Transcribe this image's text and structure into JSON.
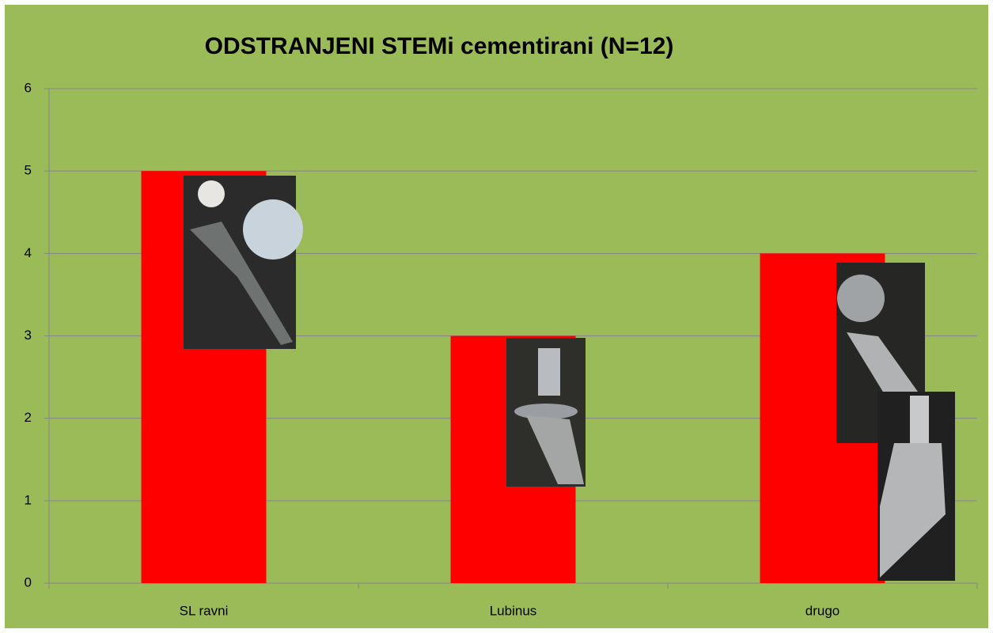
{
  "chart_data": {
    "type": "bar",
    "title": "ODSTRANJENI STEMi cementirani  (N=12)",
    "categories": [
      "SL ravni",
      "Lubinus",
      "drugo"
    ],
    "values": [
      5,
      3,
      4
    ],
    "color": "#ff0000",
    "ylim": [
      0,
      6
    ],
    "yticks": [
      0,
      1,
      2,
      3,
      4,
      5,
      6
    ],
    "grid": true
  }
}
